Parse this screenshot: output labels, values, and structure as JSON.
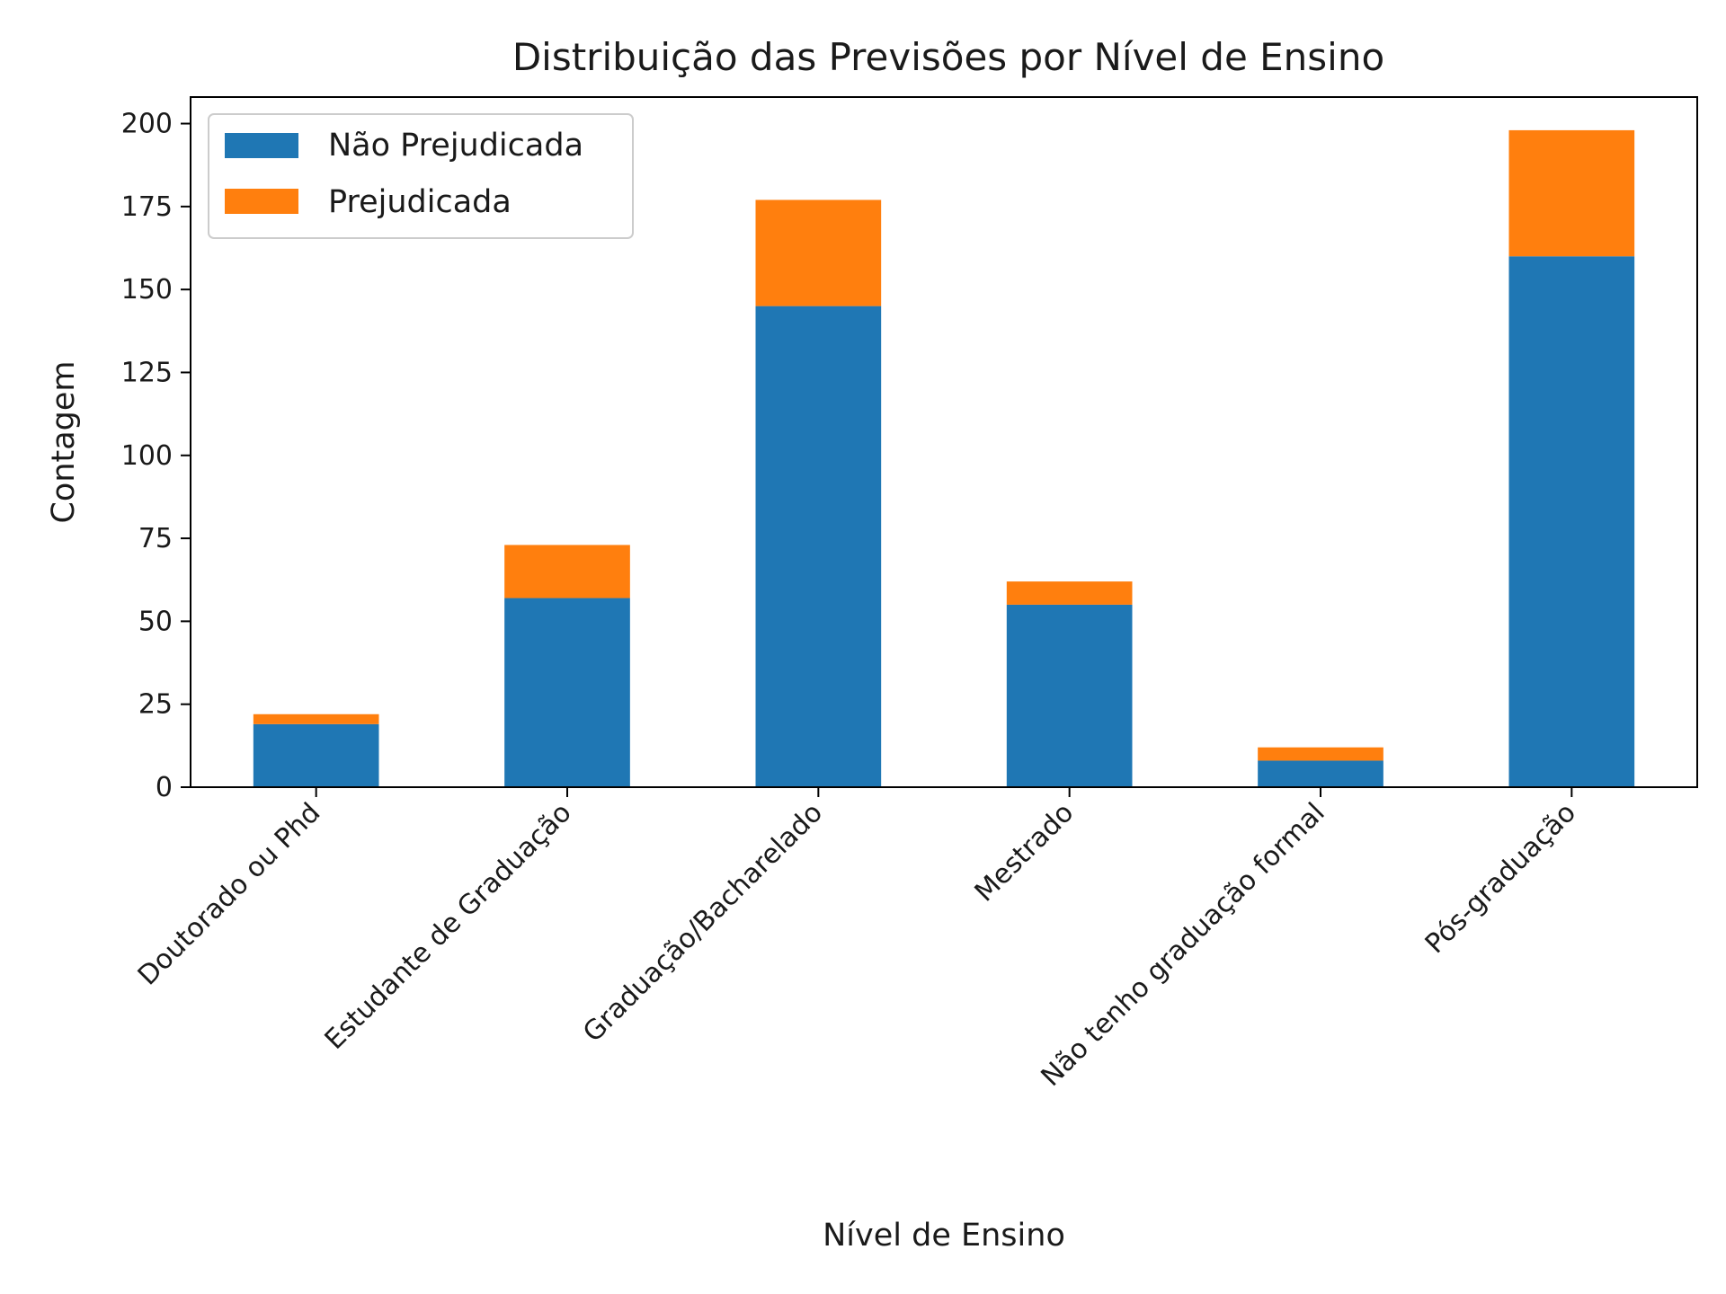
{
  "chart_data": {
    "type": "bar",
    "stacked": true,
    "title": "Distribuição das Previsões por Nível de Ensino",
    "xlabel": "Nível de Ensino",
    "ylabel": "Contagem",
    "categories": [
      "Doutorado ou Phd",
      "Estudante de Graduação",
      "Graduação/Bacharelado",
      "Mestrado",
      "Não tenho graduação formal",
      "Pós-graduação"
    ],
    "series": [
      {
        "name": "Não Prejudicada",
        "color": "#1f77b4",
        "values": [
          19,
          57,
          145,
          55,
          8,
          160
        ]
      },
      {
        "name": "Prejudicada",
        "color": "#ff7f0e",
        "values": [
          3,
          16,
          32,
          7,
          4,
          38
        ]
      }
    ],
    "ylim": [
      0,
      208
    ],
    "yticks": [
      0,
      25,
      50,
      75,
      100,
      125,
      150,
      175,
      200
    ],
    "grid": false,
    "legend_position": "top-left"
  }
}
